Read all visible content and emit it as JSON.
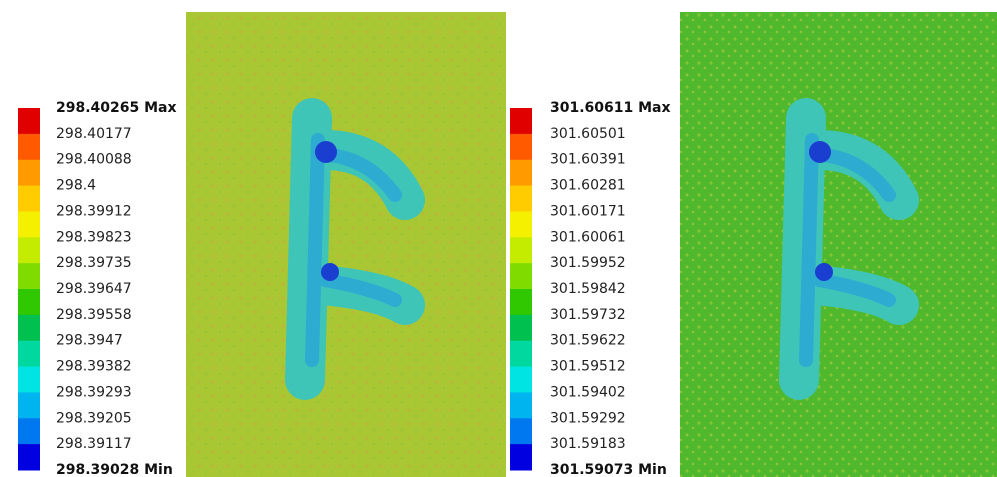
{
  "panels": [
    {
      "legend": [
        "298.40265 Max",
        "298.40177",
        "298.40088",
        "298.4",
        "298.39912",
        "298.39823",
        "298.39735",
        "298.39647",
        "298.39558",
        "298.3947",
        "298.39382",
        "298.39293",
        "298.39205",
        "298.39117",
        "298.39028 Min"
      ]
    },
    {
      "legend": [
        "301.60611 Max",
        "301.60501",
        "301.60391",
        "301.60281",
        "301.60171",
        "301.60061",
        "301.59952",
        "301.59842",
        "301.59732",
        "301.59622",
        "301.59512",
        "301.59402",
        "301.59292",
        "301.59183",
        "301.59073 Min"
      ]
    }
  ]
}
